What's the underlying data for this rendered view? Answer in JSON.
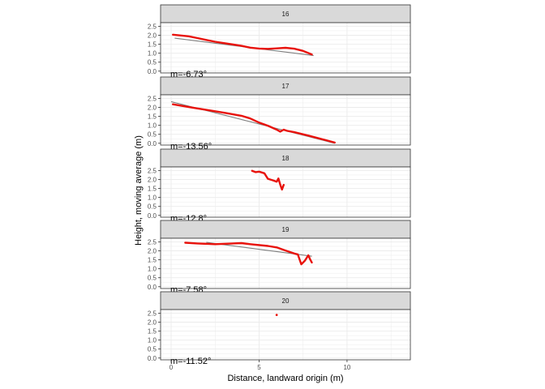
{
  "chart_data": {
    "type": "line",
    "xlabel": "Distance, landward origin (m)",
    "ylabel": "Height, moving average (m)",
    "xlim": [
      -0.6,
      13.6
    ],
    "ylim": [
      -0.1,
      2.7
    ],
    "x_ticks": [
      0,
      5,
      10
    ],
    "y_ticks": [
      0.0,
      0.5,
      1.0,
      1.5,
      2.0,
      2.5
    ],
    "x_tick_labels": [
      "0",
      "5",
      "10"
    ],
    "y_tick_labels": [
      "0.0",
      "0.5",
      "1.0",
      "1.5",
      "2.0",
      "2.5"
    ],
    "grid": true,
    "colors": {
      "observed": "#e8120c",
      "fit": "#7f7f7f",
      "strip_fill": "#d9d9d9",
      "panel_border": "#333333",
      "grid": "#ebebeb"
    },
    "panels": [
      {
        "label": "16",
        "annotation": "m=-6.73°",
        "fit": [
          [
            0.2,
            1.84
          ],
          [
            8.1,
            0.87
          ]
        ],
        "observed": [
          [
            0.1,
            2.03
          ],
          [
            0.5,
            1.99
          ],
          [
            1.0,
            1.94
          ],
          [
            1.5,
            1.84
          ],
          [
            2.0,
            1.74
          ],
          [
            2.5,
            1.64
          ],
          [
            3.0,
            1.56
          ],
          [
            3.5,
            1.49
          ],
          [
            4.0,
            1.41
          ],
          [
            4.5,
            1.31
          ],
          [
            5.0,
            1.26
          ],
          [
            5.5,
            1.24
          ],
          [
            6.0,
            1.27
          ],
          [
            6.5,
            1.3
          ],
          [
            7.0,
            1.25
          ],
          [
            7.5,
            1.13
          ],
          [
            8.0,
            0.93
          ]
        ]
      },
      {
        "label": "17",
        "annotation": "m=-13.56°",
        "fit": [
          [
            0.0,
            2.32
          ],
          [
            9.3,
            0.0
          ]
        ],
        "observed": [
          [
            0.1,
            2.17
          ],
          [
            1.0,
            2.02
          ],
          [
            2.0,
            1.86
          ],
          [
            3.0,
            1.7
          ],
          [
            4.0,
            1.53
          ],
          [
            4.5,
            1.38
          ],
          [
            5.0,
            1.15
          ],
          [
            5.5,
            0.98
          ],
          [
            6.0,
            0.76
          ],
          [
            6.2,
            0.65
          ],
          [
            6.4,
            0.76
          ],
          [
            6.6,
            0.69
          ],
          [
            7.0,
            0.62
          ],
          [
            8.0,
            0.38
          ],
          [
            9.0,
            0.12
          ],
          [
            9.3,
            0.04
          ]
        ]
      },
      {
        "label": "18",
        "annotation": "m=-12.8°",
        "fit": [],
        "observed": [
          [
            4.6,
            2.49
          ],
          [
            4.8,
            2.41
          ],
          [
            5.0,
            2.44
          ],
          [
            5.3,
            2.35
          ],
          [
            5.5,
            2.04
          ],
          [
            5.8,
            1.95
          ],
          [
            6.0,
            1.88
          ],
          [
            6.1,
            2.06
          ],
          [
            6.2,
            1.72
          ],
          [
            6.3,
            1.44
          ],
          [
            6.4,
            1.7
          ]
        ]
      },
      {
        "label": "19",
        "annotation": "m=-7.58°",
        "fit": [
          [
            2.0,
            2.47
          ],
          [
            8.0,
            1.7
          ]
        ],
        "observed": [
          [
            0.8,
            2.45
          ],
          [
            1.5,
            2.41
          ],
          [
            2.5,
            2.37
          ],
          [
            3.5,
            2.41
          ],
          [
            4.0,
            2.43
          ],
          [
            4.5,
            2.37
          ],
          [
            5.5,
            2.27
          ],
          [
            6.0,
            2.19
          ],
          [
            6.5,
            2.02
          ],
          [
            7.0,
            1.85
          ],
          [
            7.2,
            1.8
          ],
          [
            7.4,
            1.25
          ],
          [
            7.6,
            1.45
          ],
          [
            7.8,
            1.75
          ],
          [
            7.9,
            1.52
          ],
          [
            8.0,
            1.35
          ]
        ]
      },
      {
        "label": "20",
        "annotation": "m=-11.52°",
        "fit": [],
        "observed": [
          [
            6.0,
            2.4
          ]
        ]
      }
    ]
  }
}
